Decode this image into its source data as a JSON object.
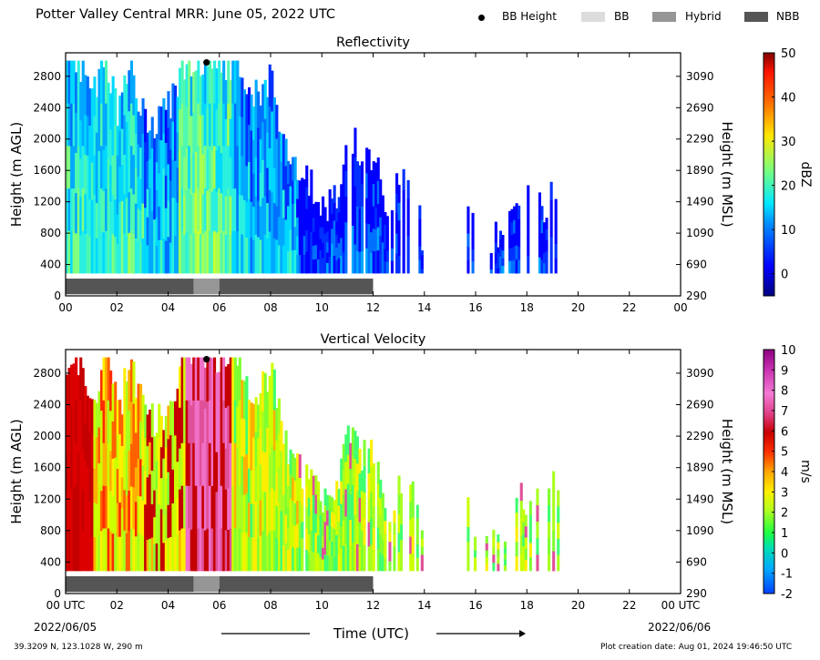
{
  "header": {
    "title": "Potter Valley Central MRR:  June 05, 2022 UTC",
    "legend": [
      {
        "label": "BB Height",
        "kind": "dot",
        "color": "#000000"
      },
      {
        "label": "BB",
        "kind": "swatch",
        "color": "#dcdcdc"
      },
      {
        "label": "Hybrid",
        "kind": "swatch",
        "color": "#969696"
      },
      {
        "label": "NBB",
        "kind": "swatch",
        "color": "#555555"
      }
    ]
  },
  "footer": {
    "location": "39.3209 N, 123.1028 W, 290 m",
    "created": "Plot creation date: Aug 01, 2024 19:46:50 UTC",
    "date_start": "2022/06/05",
    "date_end": "2022/06/06"
  },
  "chart_data": [
    {
      "type": "heatmap",
      "title": "Reflectivity",
      "xlabel": "Time (UTC)",
      "ylabel": "Height (m AGL)",
      "ylabel2": "Height (m MSL)",
      "colorbar_label": "dBZ",
      "colorbar_ticks": [
        0,
        10,
        20,
        30,
        40,
        50
      ],
      "colorbar_range": [
        -5,
        50
      ],
      "xlim": [
        0,
        24
      ],
      "ylim": [
        0,
        3100
      ],
      "xticks": [
        "00",
        "02",
        "04",
        "06",
        "08",
        "10",
        "12",
        "14",
        "16",
        "18",
        "20",
        "22",
        "00"
      ],
      "yticks": [
        0,
        400,
        800,
        1200,
        1600,
        2000,
        2400,
        2800
      ],
      "y2ticks": [
        290,
        690,
        1090,
        1490,
        1890,
        2290,
        2690,
        3090
      ],
      "bb_height": {
        "time": 5.5,
        "height": 3000
      },
      "bb_bar": [
        {
          "start": 0,
          "end": 5.0,
          "type": "NBB"
        },
        {
          "start": 5.0,
          "end": 6.0,
          "type": "Hybrid"
        },
        {
          "start": 6.0,
          "end": 12.0,
          "type": "NBB"
        }
      ],
      "profile_top_m": [
        [
          0.0,
          3000
        ],
        [
          0.5,
          3000
        ],
        [
          1.0,
          2500
        ],
        [
          1.5,
          3000
        ],
        [
          2.0,
          2300
        ],
        [
          2.5,
          3000
        ],
        [
          3.0,
          2300
        ],
        [
          3.5,
          2200
        ],
        [
          4.0,
          2400
        ],
        [
          4.5,
          3000
        ],
        [
          5.0,
          3000
        ],
        [
          5.5,
          3000
        ],
        [
          6.0,
          3000
        ],
        [
          6.5,
          3000
        ],
        [
          7.0,
          2700
        ],
        [
          7.5,
          2500
        ],
        [
          8.0,
          2900
        ],
        [
          8.5,
          1900
        ],
        [
          9.0,
          1600
        ],
        [
          9.5,
          1500
        ],
        [
          10.0,
          1100
        ],
        [
          10.5,
          1200
        ],
        [
          11.0,
          2200
        ],
        [
          11.5,
          1700
        ],
        [
          12.0,
          1900
        ],
        [
          12.5,
          800
        ],
        [
          13.0,
          1500
        ],
        [
          13.5,
          1500
        ],
        [
          14.0,
          500
        ],
        [
          15.5,
          1600
        ],
        [
          16.0,
          700
        ],
        [
          17.0,
          700
        ],
        [
          17.5,
          1200
        ],
        [
          18.0,
          1200
        ],
        [
          18.5,
          1100
        ],
        [
          19.2,
          1500
        ]
      ]
    },
    {
      "type": "heatmap",
      "title": "Vertical Velocity",
      "xlabel": "Time (UTC)",
      "ylabel": "Height (m AGL)",
      "ylabel2": "Height (m MSL)",
      "colorbar_label": "m/s",
      "colorbar_ticks": [
        -2,
        -1,
        0,
        1,
        2,
        3,
        4,
        5,
        6,
        7,
        8,
        9,
        10
      ],
      "colorbar_range": [
        -2,
        10
      ],
      "xlim": [
        0,
        24
      ],
      "ylim": [
        0,
        3100
      ],
      "xticks": [
        "00 UTC",
        "02",
        "04",
        "06",
        "08",
        "10",
        "12",
        "14",
        "16",
        "18",
        "20",
        "22",
        "00 UTC"
      ],
      "yticks": [
        0,
        400,
        800,
        1200,
        1600,
        2000,
        2400,
        2800
      ],
      "y2ticks": [
        290,
        690,
        1090,
        1490,
        1890,
        2290,
        2690,
        3090
      ],
      "bb_height": {
        "time": 5.5,
        "height": 3000
      },
      "bb_bar": [
        {
          "start": 0,
          "end": 5.0,
          "type": "NBB"
        },
        {
          "start": 5.0,
          "end": 6.0,
          "type": "Hybrid"
        },
        {
          "start": 6.0,
          "end": 12.0,
          "type": "NBB"
        }
      ],
      "profile_top_m": [
        [
          0.0,
          3000
        ],
        [
          0.5,
          3000
        ],
        [
          1.0,
          2500
        ],
        [
          1.5,
          3000
        ],
        [
          2.0,
          2300
        ],
        [
          2.5,
          3000
        ],
        [
          3.0,
          2300
        ],
        [
          3.5,
          2200
        ],
        [
          4.0,
          2400
        ],
        [
          4.5,
          3000
        ],
        [
          5.0,
          3000
        ],
        [
          5.5,
          3000
        ],
        [
          6.0,
          3000
        ],
        [
          6.5,
          3000
        ],
        [
          7.0,
          2700
        ],
        [
          7.5,
          2500
        ],
        [
          8.0,
          2900
        ],
        [
          8.5,
          1900
        ],
        [
          9.0,
          1600
        ],
        [
          9.5,
          1500
        ],
        [
          10.0,
          1100
        ],
        [
          10.5,
          1200
        ],
        [
          11.0,
          2200
        ],
        [
          11.5,
          1700
        ],
        [
          12.0,
          1900
        ],
        [
          12.5,
          800
        ],
        [
          13.0,
          1500
        ],
        [
          13.5,
          1500
        ],
        [
          14.0,
          500
        ],
        [
          15.5,
          1600
        ],
        [
          16.0,
          700
        ],
        [
          17.0,
          700
        ],
        [
          17.5,
          1200
        ],
        [
          18.0,
          1200
        ],
        [
          18.5,
          1100
        ],
        [
          19.2,
          1500
        ]
      ]
    }
  ]
}
